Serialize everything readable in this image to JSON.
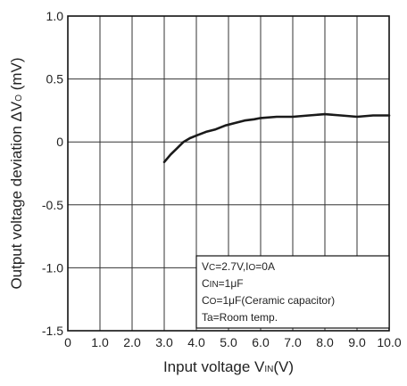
{
  "chart_data": {
    "type": "line",
    "xlabel": {
      "main": "Input voltage V",
      "sub": "IN",
      "unit": "(V)"
    },
    "ylabel": {
      "main": "Output voltage deviation ΔV",
      "sub": "O",
      "unit": " (mV)"
    },
    "xlim": [
      0,
      10
    ],
    "ylim": [
      -1.5,
      1.0
    ],
    "x_ticks": [
      0,
      1,
      2,
      3,
      4,
      5,
      6,
      7,
      8,
      9,
      10
    ],
    "x_tick_labels": [
      "0",
      "1.0",
      "2.0",
      "3.0",
      "4.0",
      "5.0",
      "6.0",
      "7.0",
      "8.0",
      "9.0",
      "10.0"
    ],
    "y_ticks": [
      -1.5,
      -1.0,
      -0.5,
      0,
      0.5,
      1.0
    ],
    "y_tick_labels": [
      "-1.5",
      "-1.0",
      "-0.5",
      "0",
      "0.5",
      "1.0"
    ],
    "grid": true,
    "series": [
      {
        "x": [
          3.0,
          3.2,
          3.4,
          3.6,
          3.8,
          4.0,
          4.3,
          4.6,
          4.9,
          5.2,
          5.5,
          5.8,
          6.0,
          6.5,
          7.0,
          7.5,
          8.0,
          8.5,
          9.0,
          9.5,
          10.0
        ],
        "y": [
          -0.16,
          -0.1,
          -0.05,
          0.0,
          0.03,
          0.05,
          0.08,
          0.1,
          0.13,
          0.15,
          0.17,
          0.18,
          0.19,
          0.2,
          0.2,
          0.21,
          0.22,
          0.21,
          0.2,
          0.21,
          0.21
        ],
        "color": "#1a1a1a"
      }
    ],
    "annotation": {
      "lines": [
        [
          {
            "t": "V",
            "sub": false
          },
          {
            "t": "C",
            "sub": true
          },
          {
            "t": "=2.7V,I",
            "sub": false
          },
          {
            "t": "O",
            "sub": true
          },
          {
            "t": "=0A",
            "sub": false
          }
        ],
        [
          {
            "t": "C",
            "sub": false
          },
          {
            "t": "IN",
            "sub": true
          },
          {
            "t": "=1μF",
            "sub": false
          }
        ],
        [
          {
            "t": "C",
            "sub": false
          },
          {
            "t": "O",
            "sub": true
          },
          {
            "t": "=1μF(Ceramic capacitor)",
            "sub": false
          }
        ],
        [
          {
            "t": "Ta=Room temp.",
            "sub": false
          }
        ]
      ]
    }
  }
}
